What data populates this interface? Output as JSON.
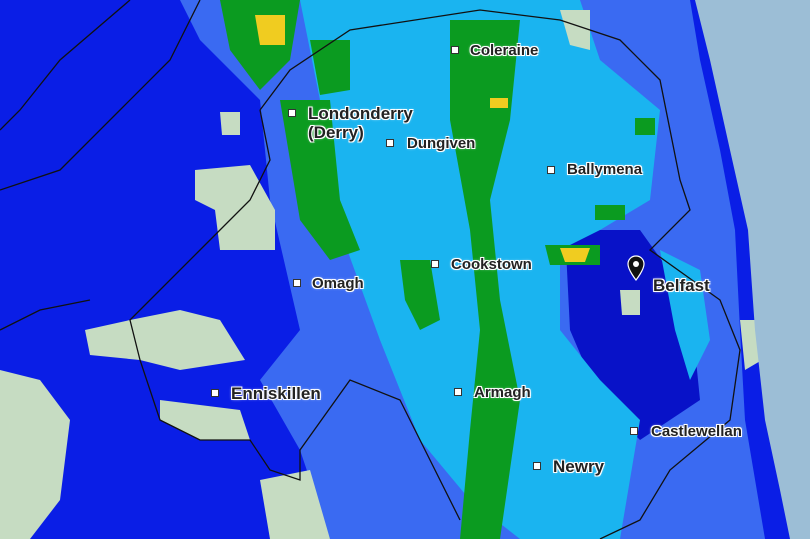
{
  "map": {
    "colors": {
      "heavy_low": "#0a1ee6",
      "medium": "#3a6af2",
      "light": "#1ab4f0",
      "green": "#0b9b20",
      "yellow": "#f0cc20",
      "land": "#c6dcc2",
      "sea": "#9cbed6",
      "border": "#111111"
    },
    "places": [
      {
        "name": "Coleraine"
      },
      {
        "name": "Londonderry",
        "name2": "(Derry)"
      },
      {
        "name": "Dungiven"
      },
      {
        "name": "Ballymena"
      },
      {
        "name": "Cookstown"
      },
      {
        "name": "Belfast",
        "marker": "map-pin-icon"
      },
      {
        "name": "Omagh"
      },
      {
        "name": "Enniskillen"
      },
      {
        "name": "Armagh"
      },
      {
        "name": "Castlewellan"
      },
      {
        "name": "Newry"
      }
    ]
  }
}
